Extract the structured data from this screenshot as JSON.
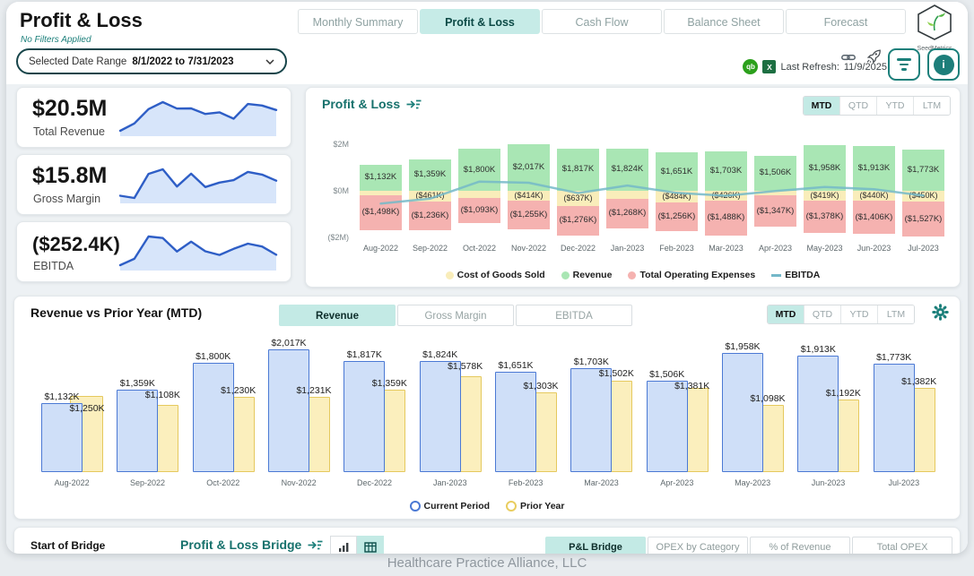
{
  "page": {
    "title": "Profit & Loss",
    "subtitle": "No Filters Applied",
    "footer": "Healthcare Practice Alliance, LLC"
  },
  "glyphs": {
    "info": "i",
    "quickbooks": "qb",
    "excel": "X"
  },
  "header": {
    "date_range": {
      "label": "Selected Date Range",
      "value": "8/1/2022 to 7/31/2023"
    },
    "nav_tabs": [
      {
        "label": "Monthly Summary",
        "active": false
      },
      {
        "label": "Profit & Loss",
        "active": true
      },
      {
        "label": "Cash Flow",
        "active": false
      },
      {
        "label": "Balance Sheet",
        "active": false
      },
      {
        "label": "Forecast",
        "active": false
      }
    ],
    "brand": {
      "name": "SeedMetrics"
    },
    "refresh": {
      "label": "Last Refresh:",
      "date": "11/9/2025"
    }
  },
  "kpis": [
    {
      "value": "$20.5M",
      "label": "Total Revenue",
      "spark_k": [
        1132,
        1359,
        1800,
        2017,
        1817,
        1824,
        1651,
        1703,
        1506,
        1958,
        1913,
        1773
      ]
    },
    {
      "value": "$15.8M",
      "label": "Gross Margin",
      "spark_k": [
        952,
        898,
        1490,
        1603,
        1180,
        1494,
        1167,
        1277,
        1336,
        1539,
        1473,
        1323
      ]
    },
    {
      "value": "($252.4K)",
      "label": "EBITDA",
      "spark_k": [
        -546,
        -338,
        397,
        348,
        -96,
        226,
        -89,
        -211,
        -11,
        161,
        67,
        -204
      ]
    }
  ],
  "pnl_section": {
    "title": "Profit & Loss",
    "period_toggles": [
      "MTD",
      "QTD",
      "YTD",
      "LTM"
    ],
    "active_period": "MTD",
    "y_ticks": [
      {
        "label": "$2M",
        "value_k": 2000
      },
      {
        "label": "$0M",
        "value_k": 0
      },
      {
        "label": "($2M)",
        "value_k": -2000
      }
    ],
    "legend": [
      {
        "label": "Cost of Goods Sold",
        "marker": "circle",
        "color": "#f9edba"
      },
      {
        "label": "Revenue",
        "marker": "circle",
        "color": "#a9e6b4"
      },
      {
        "label": "Total Operating Expenses",
        "marker": "circle",
        "color": "#f5b2b0"
      },
      {
        "label": "EBITDA",
        "marker": "dash",
        "color": "#74b8c8"
      }
    ]
  },
  "rvpy_section": {
    "title": "Revenue vs Prior Year (MTD)",
    "metric_tabs": [
      "Revenue",
      "Gross Margin",
      "EBITDA"
    ],
    "active_metric": "Revenue",
    "period_toggles": [
      "MTD",
      "QTD",
      "YTD",
      "LTM"
    ],
    "active_period": "MTD",
    "legend": [
      {
        "label": "Current Period",
        "marker": "ring",
        "color": "#4b79d4"
      },
      {
        "label": "Prior Year",
        "marker": "ring",
        "color": "#e9cd5f"
      }
    ]
  },
  "bridge_section": {
    "start_label": "Start of Bridge",
    "title": "Profit & Loss Bridge",
    "tabs": [
      "P&L Bridge",
      "OPEX by Category",
      "% of Revenue",
      "Total OPEX"
    ],
    "active_tab": "P&L Bridge"
  },
  "chart_data": [
    {
      "type": "bar",
      "subtype": "stacked-with-line",
      "title": "Profit & Loss",
      "units": "$K",
      "ylim_k": [
        -2000,
        2000
      ],
      "y_tick_labels": [
        "$2M",
        "$0M",
        "($2M)"
      ],
      "legend_position": "bottom",
      "categories": [
        "Aug-2022",
        "Sep-2022",
        "Oct-2022",
        "Nov-2022",
        "Dec-2022",
        "Jan-2023",
        "Feb-2023",
        "Mar-2023",
        "Apr-2023",
        "May-2023",
        "Jun-2023",
        "Jul-2023"
      ],
      "series": [
        {
          "name": "Revenue",
          "type": "bar",
          "color": "#a9e6b4",
          "values_k": [
            1132,
            1359,
            1800,
            2017,
            1817,
            1824,
            1651,
            1703,
            1506,
            1958,
            1913,
            1773
          ],
          "labels": [
            "$1,132K",
            "$1,359K",
            "$1,800K",
            "$2,017K",
            "$1,817K",
            "$1,824K",
            "$1,651K",
            "$1,703K",
            "$1,506K",
            "$1,958K",
            "$1,913K",
            "$1,773K"
          ]
        },
        {
          "name": "Cost of Goods Sold",
          "type": "bar",
          "color": "#f9edba",
          "unlabeled_values_estimated": true,
          "values_k": [
            -180,
            -461,
            -310,
            -414,
            -637,
            -330,
            -484,
            -426,
            -170,
            -419,
            -440,
            -450
          ],
          "labels": [
            null,
            "($461K)",
            null,
            "($414K)",
            "($637K)",
            null,
            "($484K)",
            "($426K)",
            null,
            "($419K)",
            "($440K)",
            "($450K)"
          ]
        },
        {
          "name": "Total Operating Expenses",
          "type": "bar",
          "color": "#f5b2b0",
          "values_k": [
            -1498,
            -1236,
            -1093,
            -1255,
            -1276,
            -1268,
            -1256,
            -1488,
            -1347,
            -1378,
            -1406,
            -1527
          ],
          "labels": [
            "($1,498K)",
            "($1,236K)",
            "($1,093K)",
            "($1,255K)",
            "($1,276K)",
            "($1,268K)",
            "($1,256K)",
            "($1,488K)",
            "($1,347K)",
            "($1,378K)",
            "($1,406K)",
            "($1,527K)"
          ]
        },
        {
          "name": "EBITDA",
          "type": "line",
          "color": "#74b8c8",
          "values_estimated": true,
          "values_k": [
            -546,
            -338,
            397,
            348,
            -96,
            226,
            -89,
            -211,
            -11,
            161,
            67,
            -204
          ]
        }
      ]
    },
    {
      "type": "bar",
      "subtype": "grouped-overlap",
      "title": "Revenue vs Prior Year (MTD)",
      "units": "$K",
      "legend_position": "bottom",
      "categories": [
        "Aug-2022",
        "Sep-2022",
        "Oct-2022",
        "Nov-2022",
        "Dec-2022",
        "Jan-2023",
        "Feb-2023",
        "Mar-2023",
        "Apr-2023",
        "May-2023",
        "Jun-2023",
        "Jul-2023"
      ],
      "series": [
        {
          "name": "Current Period",
          "fill": "#cfdff8",
          "border": "#4b79d4",
          "values_k": [
            1132,
            1359,
            1800,
            2017,
            1817,
            1824,
            1651,
            1703,
            1506,
            1958,
            1913,
            1773
          ],
          "labels": [
            "$1,132K",
            "$1,359K",
            "$1,800K",
            "$2,017K",
            "$1,817K",
            "$1,824K",
            "$1,651K",
            "$1,703K",
            "$1,506K",
            "$1,958K",
            "$1,913K",
            "$1,773K"
          ]
        },
        {
          "name": "Prior Year",
          "fill": "#fbefbd",
          "border": "#e5c95e",
          "values_k": [
            1250,
            1108,
            1230,
            1231,
            1359,
            1578,
            1303,
            1502,
            1381,
            1098,
            1192,
            1382
          ],
          "labels": [
            "$1,250K",
            "$1,108K",
            "$1,230K",
            "$1,231K",
            "$1,359K",
            "$1,578K",
            "$1,303K",
            "$1,502K",
            "$1,381K",
            "$1,098K",
            "$1,192K",
            "$1,382K"
          ]
        }
      ]
    }
  ]
}
